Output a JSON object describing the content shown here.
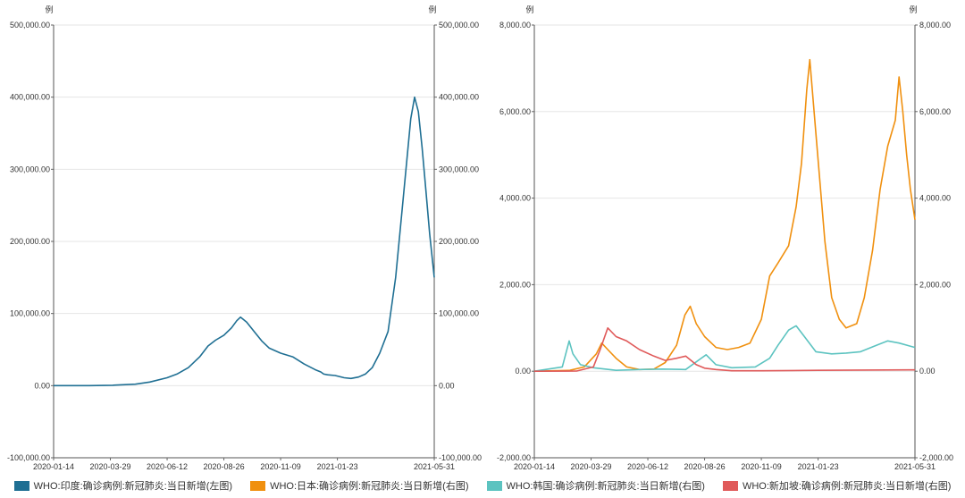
{
  "legend": {
    "items": [
      {
        "label": "WHO:印度:确诊病例:新冠肺炎:当日新增(左图)",
        "color": "#1f6f93"
      },
      {
        "label": "WHO:日本:确诊病例:新冠肺炎:当日新增(右图)",
        "color": "#f0900f"
      },
      {
        "label": "WHO:韩国:确诊病例:新冠肺炎:当日新增(右图)",
        "color": "#5cc3c0"
      },
      {
        "label": "WHO:新加坡:确诊病例:新冠肺炎:当日新增(右图)",
        "color": "#e05a5a"
      }
    ]
  },
  "chart_data": [
    {
      "type": "line",
      "unit_left": "例",
      "unit_right": "例",
      "ylim": [
        -100000,
        500000
      ],
      "yticks": [
        "500,000.00",
        "400,000.00",
        "300,000.00",
        "200,000.00",
        "100,000.00",
        "0.00",
        "-100,000.00"
      ],
      "xlim": [
        "2020-01-14",
        "2021-05-31"
      ],
      "xticks": [
        "2020-01-14",
        "2020-03-29",
        "2020-06-12",
        "2020-08-26",
        "2020-11-09",
        "2021-01-23",
        "2021-05-31"
      ],
      "grid": true,
      "series": [
        {
          "name": "WHO:印度:确诊病例:新冠肺炎:当日新增(左图)",
          "color": "#1f6f93",
          "x": [
            "2020-01-14",
            "2020-03-01",
            "2020-04-01",
            "2020-05-01",
            "2020-05-20",
            "2020-06-12",
            "2020-06-25",
            "2020-07-10",
            "2020-07-25",
            "2020-08-05",
            "2020-08-15",
            "2020-08-26",
            "2020-09-05",
            "2020-09-12",
            "2020-09-17",
            "2020-09-25",
            "2020-10-05",
            "2020-10-15",
            "2020-10-25",
            "2020-11-09",
            "2020-11-25",
            "2020-12-10",
            "2020-12-25",
            "2021-01-01",
            "2021-01-05",
            "2021-01-10",
            "2021-01-20",
            "2021-02-01",
            "2021-02-10",
            "2021-02-20",
            "2021-03-01",
            "2021-03-10",
            "2021-03-20",
            "2021-03-31",
            "2021-04-10",
            "2021-04-20",
            "2021-04-30",
            "2021-05-05",
            "2021-05-10",
            "2021-05-15",
            "2021-05-20",
            "2021-05-25",
            "2021-05-31"
          ],
          "values": [
            0,
            0,
            500,
            2000,
            5000,
            11000,
            16000,
            25000,
            40000,
            55000,
            63000,
            70000,
            80000,
            90000,
            95000,
            88000,
            75000,
            62000,
            52000,
            45000,
            40000,
            30000,
            22000,
            19000,
            16000,
            15000,
            14000,
            11000,
            10000,
            12000,
            16000,
            25000,
            45000,
            75000,
            150000,
            260000,
            370000,
            400000,
            380000,
            330000,
            270000,
            210000,
            150000
          ]
        }
      ]
    },
    {
      "type": "line",
      "unit_left": "例",
      "unit_right": "例",
      "ylim": [
        -2000,
        8000
      ],
      "yticks": [
        "8,000.00",
        "6,000.00",
        "4,000.00",
        "2,000.00",
        "0.00",
        "-2,000.00"
      ],
      "xlim": [
        "2020-01-14",
        "2021-05-31"
      ],
      "xticks": [
        "2020-01-14",
        "2020-03-29",
        "2020-06-12",
        "2020-08-26",
        "2020-11-09",
        "2021-01-23",
        "2021-05-31"
      ],
      "grid": true,
      "series": [
        {
          "name": "WHO:日本:确诊病例:新冠肺炎:当日新增(右图)",
          "color": "#f0900f",
          "x": [
            "2020-01-14",
            "2020-03-01",
            "2020-03-20",
            "2020-04-05",
            "2020-04-12",
            "2020-04-20",
            "2020-05-01",
            "2020-05-15",
            "2020-06-01",
            "2020-06-20",
            "2020-07-05",
            "2020-07-20",
            "2020-07-31",
            "2020-08-07",
            "2020-08-15",
            "2020-08-26",
            "2020-09-10",
            "2020-09-25",
            "2020-10-10",
            "2020-10-25",
            "2020-11-09",
            "2020-11-20",
            "2020-12-01",
            "2020-12-15",
            "2020-12-25",
            "2021-01-01",
            "2021-01-08",
            "2021-01-12",
            "2021-01-20",
            "2021-02-01",
            "2021-02-10",
            "2021-02-20",
            "2021-03-01",
            "2021-03-15",
            "2021-03-25",
            "2021-04-05",
            "2021-04-15",
            "2021-04-25",
            "2021-05-05",
            "2021-05-10",
            "2021-05-15",
            "2021-05-20",
            "2021-05-25",
            "2021-05-31"
          ],
          "values": [
            0,
            20,
            100,
            400,
            650,
            500,
            300,
            100,
            40,
            50,
            200,
            600,
            1300,
            1500,
            1100,
            800,
            550,
            500,
            550,
            650,
            1200,
            2200,
            2500,
            2900,
            3800,
            4800,
            6500,
            7200,
            5500,
            3000,
            1700,
            1200,
            1000,
            1100,
            1700,
            2800,
            4200,
            5200,
            5800,
            6800,
            6000,
            5000,
            4200,
            3500
          ]
        },
        {
          "name": "WHO:韩国:确诊病例:新冠肺炎:当日新增(右图)",
          "color": "#5cc3c0",
          "x": [
            "2020-01-14",
            "2020-02-20",
            "2020-02-29",
            "2020-03-05",
            "2020-03-15",
            "2020-04-01",
            "2020-05-01",
            "2020-06-01",
            "2020-07-01",
            "2020-08-01",
            "2020-08-20",
            "2020-08-28",
            "2020-09-10",
            "2020-10-01",
            "2020-11-01",
            "2020-11-20",
            "2020-12-01",
            "2020-12-15",
            "2020-12-25",
            "2021-01-05",
            "2021-01-20",
            "2021-02-10",
            "2021-03-01",
            "2021-03-20",
            "2021-04-10",
            "2021-04-25",
            "2021-05-10",
            "2021-05-31"
          ],
          "values": [
            0,
            100,
            700,
            400,
            150,
            80,
            20,
            40,
            50,
            40,
            280,
            380,
            150,
            80,
            100,
            300,
            600,
            950,
            1050,
            800,
            450,
            400,
            420,
            450,
            600,
            700,
            650,
            550
          ]
        },
        {
          "name": "WHO:新加坡:确诊病例:新冠肺炎:当日新增(右图)",
          "color": "#e05a5a",
          "x": [
            "2020-01-14",
            "2020-03-10",
            "2020-04-01",
            "2020-04-10",
            "2020-04-20",
            "2020-05-01",
            "2020-05-15",
            "2020-06-01",
            "2020-06-20",
            "2020-07-05",
            "2020-07-20",
            "2020-08-01",
            "2020-08-15",
            "2020-08-26",
            "2020-09-10",
            "2020-10-01",
            "2020-11-09",
            "2021-01-23",
            "2021-05-31"
          ],
          "values": [
            0,
            5,
            100,
            500,
            1000,
            800,
            700,
            500,
            350,
            250,
            300,
            350,
            150,
            70,
            40,
            10,
            10,
            20,
            30
          ]
        }
      ]
    }
  ]
}
